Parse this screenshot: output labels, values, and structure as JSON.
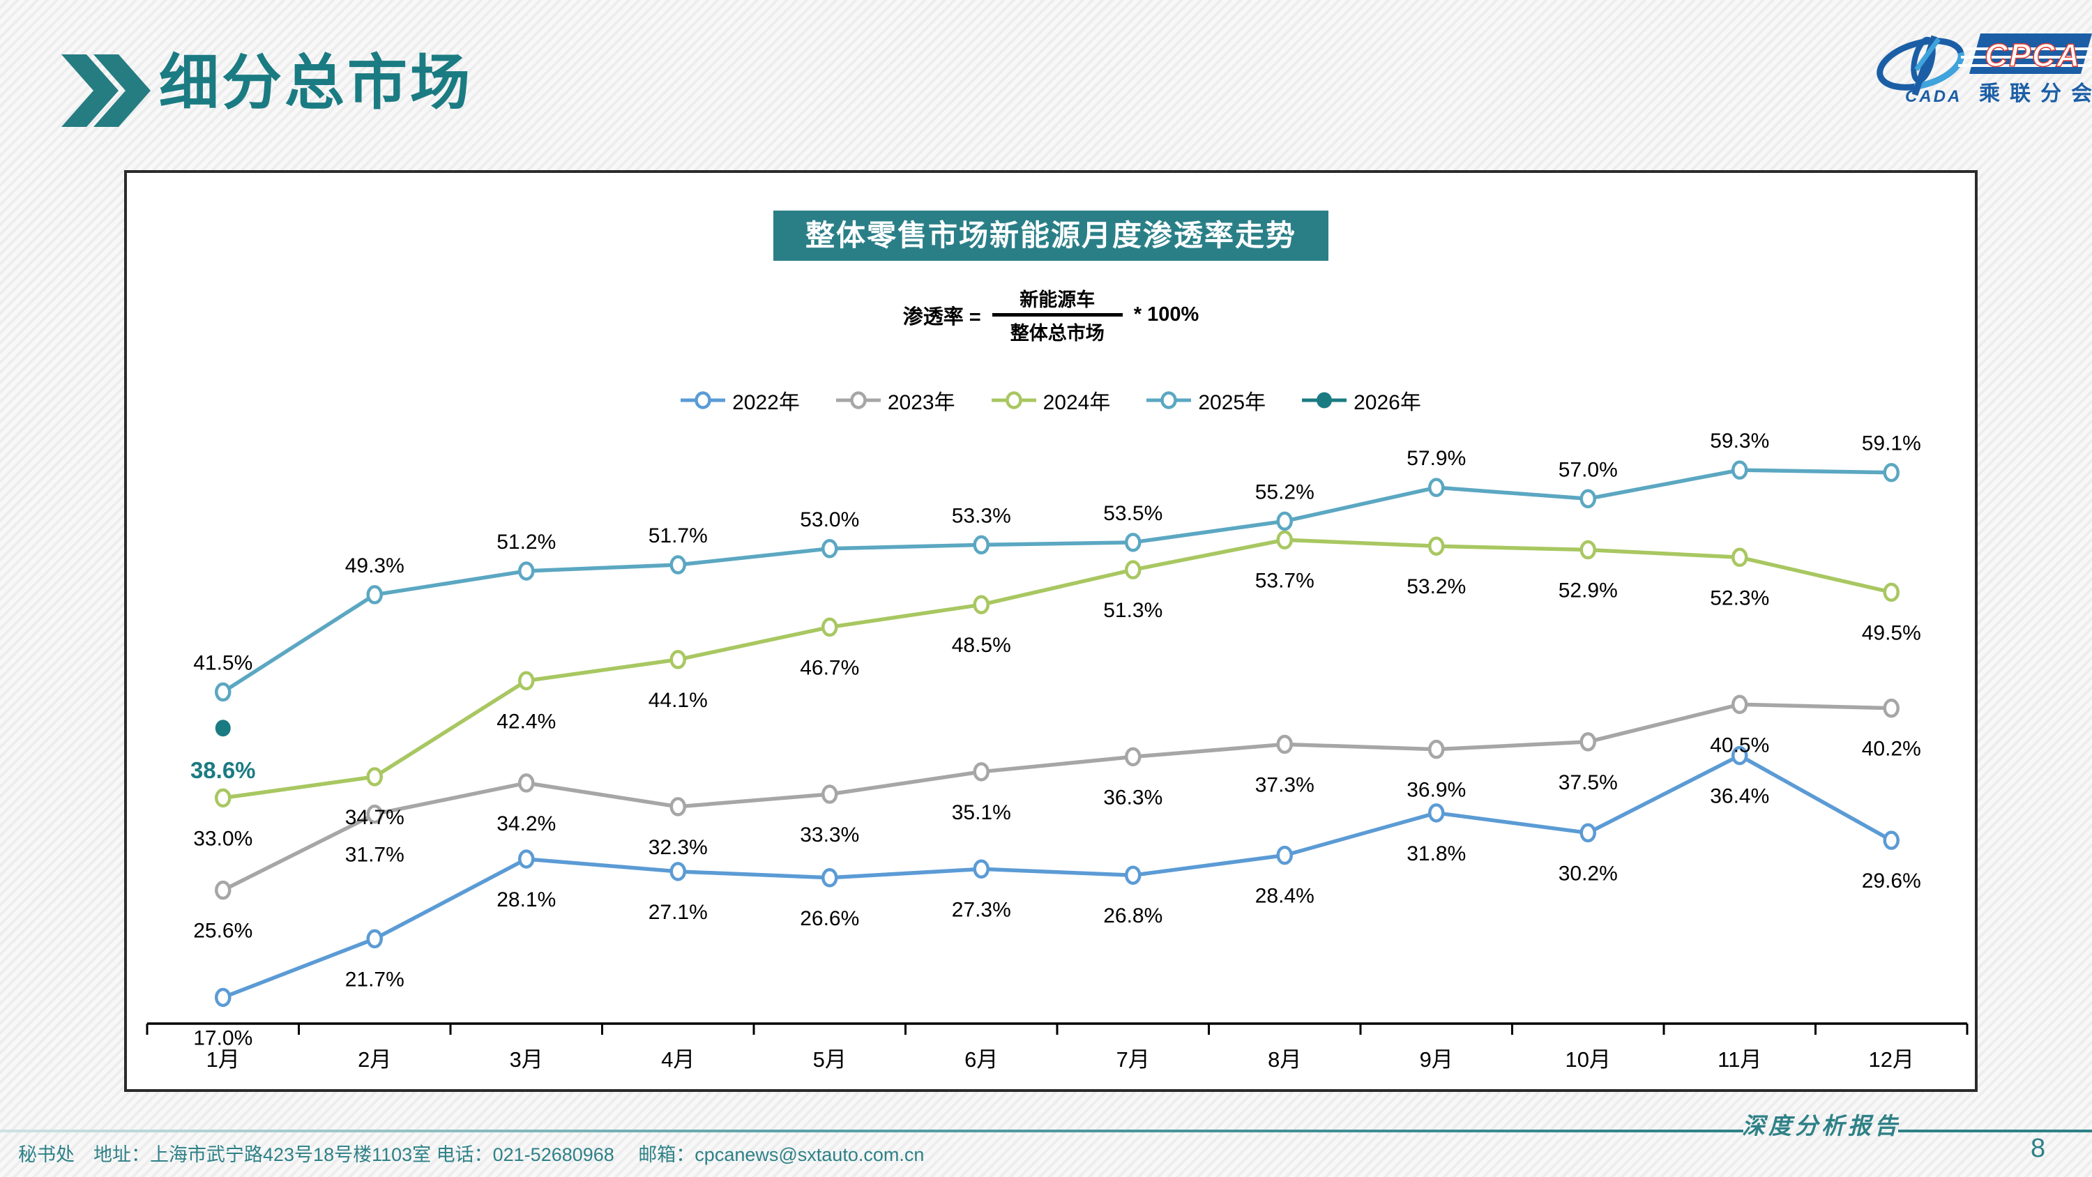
{
  "header": {
    "title": "细分总市场"
  },
  "logo": {
    "cpca": "CPCA",
    "cada": "CADA",
    "subtitle": "乘联分会"
  },
  "chart": {
    "title": "整体零售市场新能源月度渗透率走势",
    "formula": {
      "lhs": "渗透率 =",
      "numerator": "新能源车",
      "denominator": "整体总市场",
      "rhs": "* 100%"
    }
  },
  "chart_data": {
    "type": "line",
    "title": "整体零售市场新能源月度渗透率走势",
    "categories": [
      "1月",
      "2月",
      "3月",
      "4月",
      "5月",
      "6月",
      "7月",
      "8月",
      "9月",
      "10月",
      "11月",
      "12月"
    ],
    "value_suffix": "%",
    "ylim": [
      15,
      64
    ],
    "grid": false,
    "legend_position": "top",
    "series": [
      {
        "name": "2022年",
        "color": "#5b9bd5",
        "marker": "open",
        "label_position": "below",
        "values": [
          17.0,
          21.7,
          28.1,
          27.1,
          26.6,
          27.3,
          26.8,
          28.4,
          31.8,
          30.2,
          36.4,
          29.6
        ]
      },
      {
        "name": "2023年",
        "color": "#a6a6a6",
        "marker": "open",
        "label_position": "below",
        "values": [
          25.6,
          31.7,
          34.2,
          32.3,
          33.3,
          35.1,
          36.3,
          37.3,
          36.9,
          37.5,
          40.5,
          40.2
        ]
      },
      {
        "name": "2024年",
        "color": "#a8c761",
        "marker": "open",
        "label_position": "below",
        "values": [
          33.0,
          34.7,
          42.4,
          44.1,
          46.7,
          48.5,
          51.3,
          53.7,
          53.2,
          52.9,
          52.3,
          49.5
        ]
      },
      {
        "name": "2025年",
        "color": "#5ba7c2",
        "marker": "open",
        "label_position": "above",
        "values": [
          41.5,
          49.3,
          51.2,
          51.7,
          53.0,
          53.3,
          53.5,
          55.2,
          57.9,
          57.0,
          59.3,
          59.1
        ]
      },
      {
        "name": "2026年",
        "color": "#1b7b82",
        "marker": "filled",
        "label_position": "below",
        "bold_labels": true,
        "values": [
          38.6,
          null,
          null,
          null,
          null,
          null,
          null,
          null,
          null,
          null,
          null,
          null
        ]
      }
    ]
  },
  "footer": {
    "left": "秘书处　地址：上海市武宁路423号18号楼1103室  电话：021-52680968 　邮箱：cpcanews@sxtauto.com.cn",
    "report_label": "深度分析报告",
    "page": "8"
  }
}
